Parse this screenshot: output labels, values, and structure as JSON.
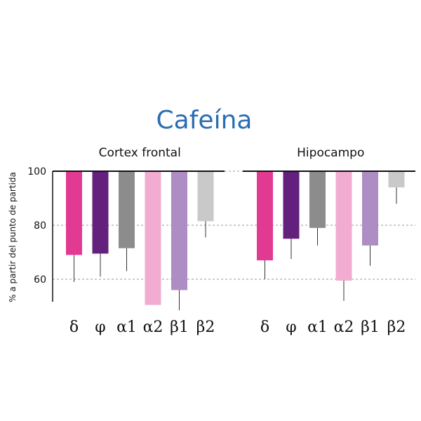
{
  "chart_data": {
    "type": "bar",
    "title": "Cafeína",
    "ylabel": "% a partir del punto de partida",
    "xlabel": "",
    "yticks": [
      100,
      80,
      60
    ],
    "ylim": [
      52,
      100
    ],
    "categories": [
      "δ",
      "φ",
      "α1",
      "α2",
      "β1",
      "β2"
    ],
    "colors": [
      "#e23a93",
      "#63207c",
      "#8c8c8c",
      "#f2acd1",
      "#ae8cc4",
      "#c9c9c9"
    ],
    "panels": [
      {
        "name": "Cortex frontal",
        "values": [
          69,
          69.5,
          71.5,
          50.5,
          56,
          81.5
        ],
        "error_low": [
          59,
          61,
          63,
          50.5,
          48.5,
          75.5
        ]
      },
      {
        "name": "Hipocampo",
        "values": [
          67,
          75,
          79,
          59.5,
          72.5,
          94
        ],
        "error_low": [
          60,
          67.5,
          72.5,
          52,
          65,
          88
        ]
      }
    ]
  }
}
